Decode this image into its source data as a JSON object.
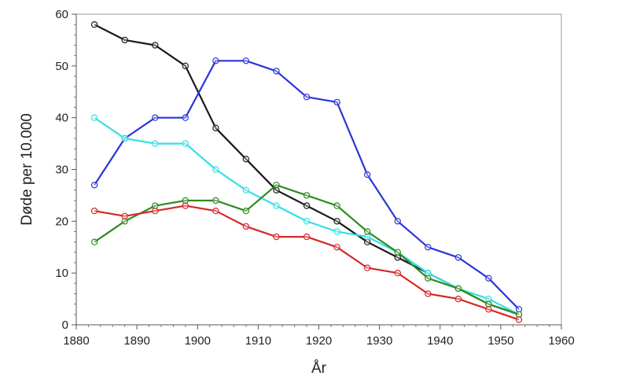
{
  "chart_data": {
    "type": "line",
    "title": "",
    "xlabel": "År",
    "ylabel": "Døde per 10.000",
    "xlim": [
      1880,
      1960
    ],
    "ylim": [
      0,
      60
    ],
    "xticks": [
      1880,
      1890,
      1900,
      1910,
      1920,
      1930,
      1940,
      1950,
      1960
    ],
    "yticks": [
      0,
      10,
      20,
      30,
      40,
      50,
      60
    ],
    "grid": false,
    "legend": "none",
    "x": [
      1883,
      1888,
      1893,
      1898,
      1903,
      1908,
      1913,
      1918,
      1923,
      1928,
      1933,
      1938,
      1943,
      1948,
      1953
    ],
    "series": [
      {
        "color": "#1a1a1a",
        "values": [
          58,
          55,
          54,
          50,
          38,
          32,
          26,
          23,
          20,
          16,
          13,
          10,
          7,
          4,
          2
        ]
      },
      {
        "color": "#2a35d8",
        "values": [
          27,
          36,
          40,
          40,
          51,
          51,
          49,
          44,
          43,
          29,
          20,
          15,
          13,
          9,
          3
        ]
      },
      {
        "color": "#33e0e6",
        "values": [
          40,
          36,
          35,
          35,
          30,
          26,
          23,
          20,
          18,
          17,
          14,
          10,
          7,
          5,
          2
        ]
      },
      {
        "color": "#2e8b22",
        "values": [
          16,
          20,
          23,
          24,
          24,
          22,
          27,
          25,
          23,
          18,
          14,
          9,
          7,
          4,
          2
        ]
      },
      {
        "color": "#d62828",
        "values": [
          22,
          21,
          22,
          23,
          22,
          19,
          17,
          17,
          15,
          11,
          10,
          6,
          5,
          3,
          1
        ]
      }
    ]
  }
}
